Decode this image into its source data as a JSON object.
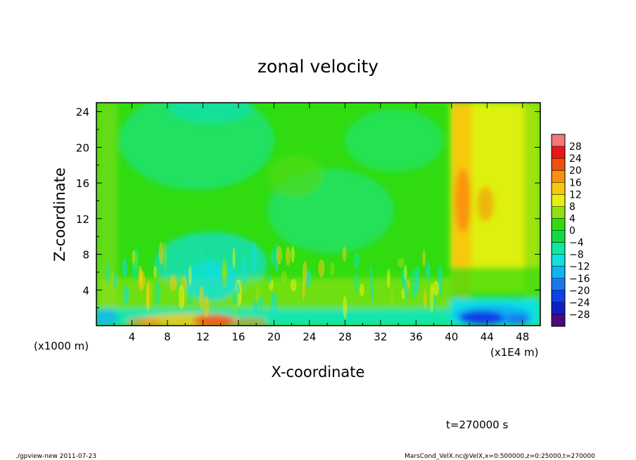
{
  "chart_data": {
    "type": "heatmap",
    "title": "zonal velocity",
    "xlabel": "X-coordinate",
    "ylabel": "Z-coordinate",
    "x_units": "(x1E4 m)",
    "y_units": "(x1000 m)",
    "xlim": [
      0,
      50
    ],
    "ylim": [
      0,
      25
    ],
    "x_ticks": [
      4,
      8,
      12,
      16,
      20,
      24,
      28,
      32,
      36,
      40,
      44,
      48
    ],
    "y_ticks": [
      4,
      8,
      12,
      16,
      20,
      24
    ],
    "x_tick_labels": [
      "4",
      "8",
      "12",
      "16",
      "20",
      "24",
      "28",
      "32",
      "36",
      "40",
      "44",
      "48"
    ],
    "y_tick_labels": [
      "4",
      "8",
      "12",
      "16",
      "20",
      "24"
    ],
    "colorbar": {
      "levels": [
        -30,
        -28,
        -24,
        -20,
        -16,
        -12,
        -8,
        -4,
        0,
        4,
        8,
        12,
        16,
        20,
        24,
        28,
        30
      ],
      "labels": [
        "28",
        "24",
        "20",
        "16",
        "12",
        "8",
        "4",
        "0",
        "−4",
        "−8",
        "−12",
        "−16",
        "−20",
        "−24",
        "−28"
      ],
      "colors": [
        "#4b0a7a",
        "#1020c0",
        "#1040e8",
        "#1878f0",
        "#10b4f0",
        "#10e0e0",
        "#10e8a0",
        "#10dc40",
        "#30dc10",
        "#90e010",
        "#e8f010",
        "#f8c810",
        "#f89010",
        "#f05010",
        "#e81818",
        "#f07878"
      ]
    },
    "z_description": "zonal velocity field; near-zero green background, weak negative cyan near surface x<38, positive orange near surface x 8-18, strong positive column x 40-45 above z 8, strong negative (-24) near surface x 40-48",
    "grid": false
  },
  "footer": {
    "time_label": "t=270000 s",
    "left_note": "./gpview-new   2011-07-23",
    "right_note": "MarsCond_VelX.nc@VelX,x=0:500000,z=0:25000,t=270000"
  }
}
